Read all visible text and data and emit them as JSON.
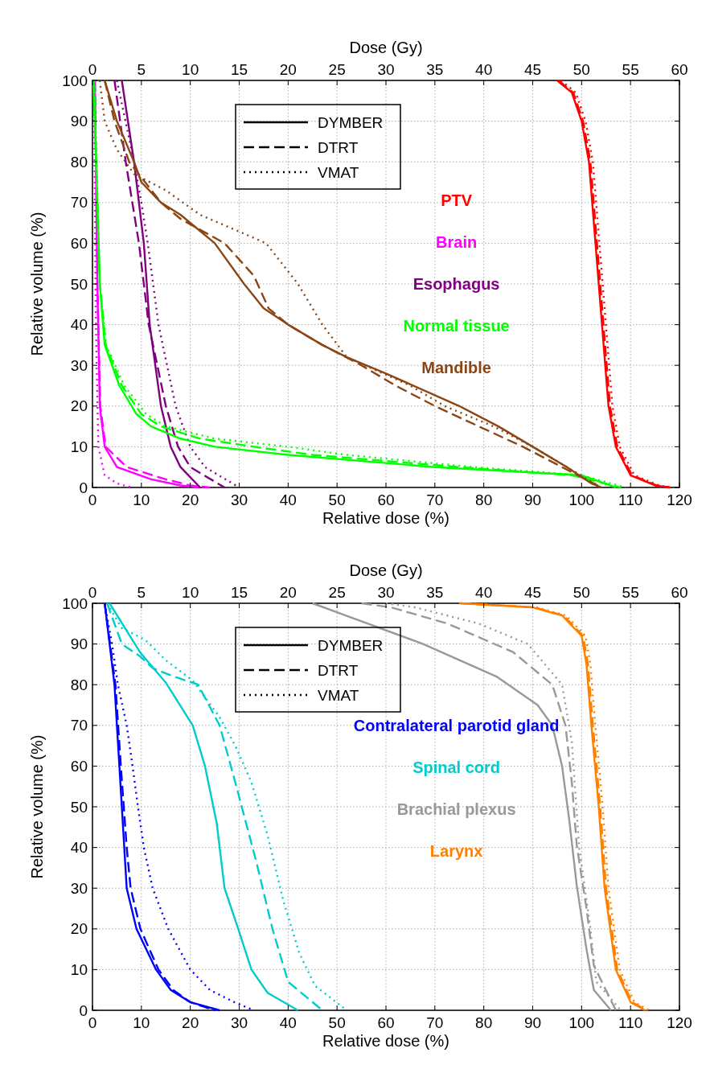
{
  "chart_data": [
    {
      "type": "line",
      "xlabel": "Relative dose (%)",
      "ylabel": "Relative volume (%)",
      "x2label": "Dose (Gy)",
      "xlim": [
        0,
        120
      ],
      "xticks": [
        0,
        10,
        20,
        30,
        40,
        50,
        60,
        70,
        80,
        90,
        100,
        110,
        120
      ],
      "x2lim": [
        0,
        60
      ],
      "x2ticks": [
        0,
        5,
        10,
        15,
        20,
        25,
        30,
        35,
        40,
        45,
        50,
        55,
        60
      ],
      "ylim": [
        0,
        100
      ],
      "yticks": [
        0,
        10,
        20,
        30,
        40,
        50,
        60,
        70,
        80,
        90,
        100
      ],
      "grid": true,
      "legend": "right",
      "annotations": [
        "DYMBER",
        "DTRT",
        "VMAT"
      ],
      "series": [
        {
          "name": "PTV",
          "color": "#ff0000",
          "line_style": "solid",
          "x": [
            95,
            98,
            100,
            101.5,
            103.5,
            105.5,
            107,
            110,
            115,
            118
          ],
          "values": [
            100,
            97,
            90,
            80,
            50,
            20,
            10,
            3,
            0.5,
            0
          ]
        },
        {
          "color": "#ff0000",
          "line_style": "dashed",
          "x": [
            95.3,
            98.3,
            100.3,
            101.8,
            103.8,
            105.8,
            107.3,
            110.3,
            115.3,
            118
          ],
          "values": [
            100,
            97,
            90,
            80,
            50,
            20,
            10,
            3,
            0.5,
            0
          ]
        },
        {
          "color": "#ff0000",
          "line_style": "dotted",
          "x": [
            95.8,
            98.8,
            100.8,
            102.3,
            104.3,
            106.3,
            107.8,
            110.8,
            115.8,
            118
          ],
          "values": [
            100,
            97,
            90,
            80,
            50,
            20,
            10,
            3,
            0.5,
            0
          ]
        },
        {
          "name": "Brain",
          "color": "#ff00ff",
          "line_style": "solid",
          "x": [
            0.5,
            1,
            1.5,
            2.5,
            5,
            12,
            18,
            22
          ],
          "values": [
            100,
            50,
            20,
            10,
            5,
            2,
            0.5,
            0
          ]
        },
        {
          "color": "#ff00ff",
          "line_style": "dashed",
          "x": [
            0.5,
            1,
            1.6,
            2.7,
            7,
            15,
            20,
            24
          ],
          "values": [
            100,
            50,
            20,
            10,
            5,
            2,
            0.5,
            0
          ]
        },
        {
          "color": "#ff00ff",
          "line_style": "dotted",
          "x": [
            0.3,
            0.7,
            1.2,
            2.5,
            5,
            8
          ],
          "values": [
            100,
            40,
            10,
            3,
            1,
            0
          ]
        },
        {
          "name": "Esophagus",
          "color": "#800080",
          "line_style": "solid",
          "x": [
            6,
            8.5,
            10.5,
            11.7,
            14,
            16,
            18,
            22
          ],
          "values": [
            100,
            80,
            60,
            40,
            20,
            10,
            5,
            0
          ]
        },
        {
          "color": "#800080",
          "line_style": "dashed",
          "x": [
            4.5,
            6.8,
            9.5,
            11.5,
            15,
            17.5,
            20,
            27
          ],
          "values": [
            100,
            80,
            60,
            40,
            20,
            10,
            5,
            0
          ]
        },
        {
          "color": "#800080",
          "line_style": "dotted",
          "x": [
            5,
            8.5,
            10,
            11.3,
            13.5,
            17,
            20,
            23,
            30
          ],
          "values": [
            100,
            80,
            70,
            60,
            40,
            20,
            10,
            5,
            0
          ]
        },
        {
          "name": "Normal tissue",
          "color": "#00ff00",
          "line_style": "solid",
          "x": [
            0.2,
            1.5,
            2.5,
            5.5,
            9,
            12,
            18,
            25,
            40,
            60,
            70,
            85,
            100,
            107
          ],
          "values": [
            100,
            50,
            35,
            25,
            18,
            15,
            12,
            10,
            8,
            6,
            5,
            4,
            3,
            0
          ]
        },
        {
          "color": "#00ff00",
          "line_style": "dashed",
          "x": [
            0.3,
            1.5,
            2.7,
            6,
            10,
            14,
            22,
            33,
            45,
            75,
            98,
            108
          ],
          "values": [
            100,
            50,
            35,
            25,
            18,
            15,
            12,
            10,
            8,
            5,
            3,
            0
          ]
        },
        {
          "color": "#00ff00",
          "line_style": "dotted",
          "x": [
            0.4,
            1.5,
            2.8,
            6.5,
            11,
            15,
            25,
            40,
            52,
            78,
            100,
            109
          ],
          "values": [
            100,
            50,
            35,
            25,
            18,
            15,
            12,
            10,
            8,
            5,
            3,
            0
          ]
        },
        {
          "name": "Mandible",
          "color": "#8b4513",
          "line_style": "solid",
          "x": [
            2.5,
            5,
            8.5,
            10,
            14,
            18,
            25,
            31,
            35,
            40,
            47,
            52,
            60,
            75,
            83,
            90,
            97,
            102,
            104
          ],
          "values": [
            100,
            90,
            80,
            75,
            70,
            67,
            60,
            50,
            44,
            40,
            35,
            32,
            28,
            20,
            15,
            10,
            5,
            1,
            0
          ]
        },
        {
          "color": "#8b4513",
          "line_style": "dashed",
          "x": [
            2.5,
            4.5,
            7.5,
            14,
            18,
            27,
            33,
            36,
            40,
            47,
            55,
            62,
            70,
            88,
            96,
            104
          ],
          "values": [
            100,
            90,
            80,
            70,
            66,
            60,
            52,
            44,
            40,
            35,
            30,
            25,
            20,
            10,
            5,
            0
          ]
        },
        {
          "color": "#8b4513",
          "line_style": "dotted",
          "x": [
            1.5,
            2.5,
            5,
            8.5,
            15,
            22,
            35.5,
            42,
            47,
            52,
            65,
            72,
            82,
            90,
            97,
            104
          ],
          "values": [
            100,
            90,
            83,
            77,
            73,
            67,
            60,
            50,
            40,
            32,
            25,
            20,
            15,
            10,
            5,
            0
          ]
        }
      ]
    },
    {
      "type": "line",
      "xlabel": "Relative dose (%)",
      "ylabel": "Relative volume (%)",
      "x2label": "Dose (Gy)",
      "xlim": [
        0,
        120
      ],
      "xticks": [
        0,
        10,
        20,
        30,
        40,
        50,
        60,
        70,
        80,
        90,
        100,
        110,
        120
      ],
      "x2lim": [
        0,
        60
      ],
      "x2ticks": [
        0,
        5,
        10,
        15,
        20,
        25,
        30,
        35,
        40,
        45,
        50,
        55,
        60
      ],
      "ylim": [
        0,
        100
      ],
      "yticks": [
        0,
        10,
        20,
        30,
        40,
        50,
        60,
        70,
        80,
        90,
        100
      ],
      "grid": true,
      "legend": "top right",
      "annotations": [
        "DYMBER",
        "DTRT",
        "VMAT"
      ],
      "series": [
        {
          "name": "Contralateral parotid gland",
          "color": "#0000ff",
          "line_style": "solid",
          "x": [
            2.5,
            4.5,
            5.5,
            6.5,
            7,
            9,
            13,
            16,
            20,
            26
          ],
          "values": [
            100,
            80,
            60,
            40,
            30,
            20,
            10,
            5,
            2,
            0
          ]
        },
        {
          "color": "#0000ff",
          "line_style": "dashed",
          "x": [
            2.5,
            4.7,
            5.8,
            7,
            7.8,
            9.8,
            13.5,
            16.5,
            20,
            25
          ],
          "values": [
            100,
            80,
            60,
            40,
            30,
            20,
            10,
            5,
            2,
            0
          ]
        },
        {
          "color": "#0000ff",
          "line_style": "dotted",
          "x": [
            2.5,
            4,
            5.2,
            7,
            8.2,
            9.3,
            10.5,
            12.3,
            15.5,
            20,
            24,
            29,
            33
          ],
          "values": [
            100,
            90,
            80,
            70,
            60,
            50,
            40,
            30,
            20,
            10,
            5,
            2,
            0
          ]
        },
        {
          "name": "Spinal cord",
          "color": "#00cccc",
          "line_style": "solid",
          "x": [
            3.5,
            9.7,
            15,
            20.5,
            23,
            25.4,
            27,
            29.8,
            32.5,
            35.8,
            42
          ],
          "values": [
            100,
            88,
            80.5,
            70,
            60,
            46,
            30,
            20,
            10,
            4.3,
            0
          ]
        },
        {
          "color": "#00cccc",
          "line_style": "dashed",
          "x": [
            3,
            6,
            9.7,
            12.4,
            16.7,
            21.6,
            26,
            29.2,
            31.4,
            33.6,
            36.8,
            40,
            47
          ],
          "values": [
            100,
            90,
            87,
            84,
            82,
            80,
            70,
            56,
            46,
            36,
            20,
            7,
            0
          ]
        },
        {
          "color": "#00cccc",
          "line_style": "dotted",
          "x": [
            3,
            5.9,
            10.8,
            15,
            20.5,
            26,
            29.2,
            32.5,
            35.8,
            39,
            42.3,
            45.5,
            52
          ],
          "values": [
            100,
            94,
            91,
            86,
            81,
            72,
            65,
            56,
            43,
            27,
            14,
            6,
            0
          ]
        },
        {
          "name": "Brachial plexus",
          "color": "#999999",
          "line_style": "solid",
          "x": [
            45,
            67.6,
            82.6,
            91,
            94,
            96,
            97.5,
            99,
            101,
            102.5,
            106
          ],
          "values": [
            100,
            90,
            82,
            75,
            70,
            60,
            46.5,
            30.7,
            15,
            5,
            0
          ]
        },
        {
          "color": "#999999",
          "line_style": "dashed",
          "x": [
            55,
            61,
            72.6,
            86,
            94,
            96.7,
            98,
            99,
            101,
            102.5,
            107
          ],
          "values": [
            100,
            99,
            95,
            88,
            80,
            70,
            56,
            40.6,
            25,
            11,
            0
          ]
        },
        {
          "color": "#999999",
          "line_style": "dotted",
          "x": [
            60,
            66,
            79,
            89,
            96,
            98,
            99.5,
            101.7,
            103,
            108
          ],
          "values": [
            100,
            99,
            95,
            90,
            80,
            66,
            40,
            21,
            7,
            0
          ]
        },
        {
          "name": "Larynx",
          "color": "#ff8000",
          "line_style": "solid",
          "x": [
            75,
            90,
            96,
            100,
            101,
            102,
            103.5,
            104.7,
            107,
            110,
            113
          ],
          "values": [
            100,
            99,
            97,
            92,
            85,
            70,
            50,
            30,
            10,
            2,
            0
          ]
        },
        {
          "color": "#ff8000",
          "line_style": "dashed",
          "x": [
            75.3,
            90.3,
            96.3,
            100.3,
            101.3,
            102.3,
            103.8,
            105,
            107.3,
            110.3,
            113.3
          ],
          "values": [
            100,
            99,
            97,
            92,
            85,
            70,
            50,
            30,
            10,
            2,
            0
          ]
        },
        {
          "color": "#ff8000",
          "line_style": "dotted",
          "x": [
            75.8,
            90.8,
            96.8,
            100.8,
            101.8,
            102.8,
            104.3,
            105.5,
            107.8,
            110.8,
            113.8
          ],
          "values": [
            100,
            99,
            97,
            92,
            85,
            70,
            50,
            30,
            10,
            2,
            0
          ]
        }
      ]
    }
  ]
}
